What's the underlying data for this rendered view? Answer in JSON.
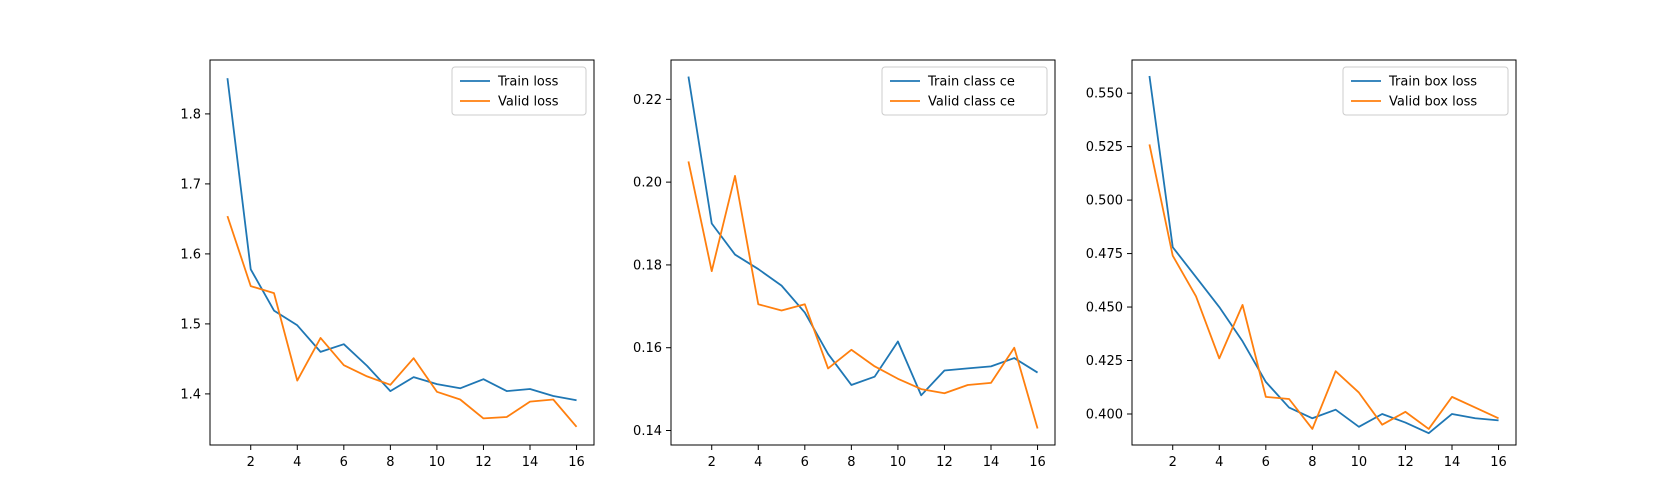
{
  "chart_data": [
    {
      "type": "line",
      "title": "",
      "xlabel": "",
      "ylabel": "",
      "xlim": [
        0.25,
        16.75
      ],
      "ylim": [
        1.327,
        1.877
      ],
      "x_ticks": [
        2,
        4,
        6,
        8,
        10,
        12,
        14,
        16
      ],
      "y_ticks": [
        1.4,
        1.5,
        1.6,
        1.7,
        1.8
      ],
      "legend_position": "top-right",
      "grid": false,
      "x": [
        1,
        2,
        3,
        4,
        5,
        6,
        7,
        8,
        9,
        10,
        11,
        12,
        13,
        14,
        15,
        16
      ],
      "series": [
        {
          "name": "Train loss",
          "color": "#1f77b4",
          "values": [
            1.851,
            1.578,
            1.519,
            1.498,
            1.46,
            1.471,
            1.44,
            1.404,
            1.424,
            1.414,
            1.408,
            1.421,
            1.404,
            1.407,
            1.397,
            1.391
          ]
        },
        {
          "name": "Valid loss",
          "color": "#ff7f0e",
          "values": [
            1.654,
            1.554,
            1.544,
            1.419,
            1.48,
            1.441,
            1.425,
            1.413,
            1.451,
            1.403,
            1.392,
            1.365,
            1.367,
            1.389,
            1.392,
            1.353
          ]
        }
      ]
    },
    {
      "type": "line",
      "title": "",
      "xlabel": "",
      "ylabel": "",
      "xlim": [
        0.25,
        16.75
      ],
      "ylim": [
        0.1365,
        0.2295
      ],
      "x_ticks": [
        2,
        4,
        6,
        8,
        10,
        12,
        14,
        16
      ],
      "y_ticks": [
        0.14,
        0.16,
        0.18,
        0.2,
        0.22
      ],
      "legend_position": "top-right",
      "grid": false,
      "x": [
        1,
        2,
        3,
        4,
        5,
        6,
        7,
        8,
        9,
        10,
        11,
        12,
        13,
        14,
        15,
        16
      ],
      "series": [
        {
          "name": "Train class ce",
          "color": "#1f77b4",
          "values": [
            0.2255,
            0.19,
            0.1825,
            0.179,
            0.175,
            0.1685,
            0.1585,
            0.151,
            0.153,
            0.1615,
            0.1485,
            0.1545,
            0.155,
            0.1555,
            0.1575,
            0.154
          ]
        },
        {
          "name": "Valid class ce",
          "color": "#ff7f0e",
          "values": [
            0.205,
            0.1785,
            0.2015,
            0.1705,
            0.169,
            0.1705,
            0.155,
            0.1595,
            0.1555,
            0.1525,
            0.15,
            0.149,
            0.151,
            0.1515,
            0.16,
            0.1405
          ]
        }
      ]
    },
    {
      "type": "line",
      "title": "",
      "xlabel": "",
      "ylabel": "",
      "xlim": [
        0.25,
        16.75
      ],
      "ylim": [
        0.3855,
        0.5655
      ],
      "x_ticks": [
        2,
        4,
        6,
        8,
        10,
        12,
        14,
        16
      ],
      "y_ticks": [
        0.4,
        0.425,
        0.45,
        0.475,
        0.5,
        0.525,
        0.55
      ],
      "y_tick_decimals": 3,
      "legend_position": "top-right",
      "grid": false,
      "x": [
        1,
        2,
        3,
        4,
        5,
        6,
        7,
        8,
        9,
        10,
        11,
        12,
        13,
        14,
        15,
        16
      ],
      "series": [
        {
          "name": "Train box loss",
          "color": "#1f77b4",
          "values": [
            0.558,
            0.478,
            0.464,
            0.45,
            0.434,
            0.415,
            0.403,
            0.398,
            0.402,
            0.394,
            0.4,
            0.396,
            0.391,
            0.4,
            0.398,
            0.397
          ]
        },
        {
          "name": "Valid box loss",
          "color": "#ff7f0e",
          "values": [
            0.526,
            0.474,
            0.455,
            0.426,
            0.451,
            0.408,
            0.407,
            0.393,
            0.42,
            0.41,
            0.395,
            0.401,
            0.393,
            0.408,
            0.403,
            0.398
          ]
        }
      ]
    }
  ]
}
